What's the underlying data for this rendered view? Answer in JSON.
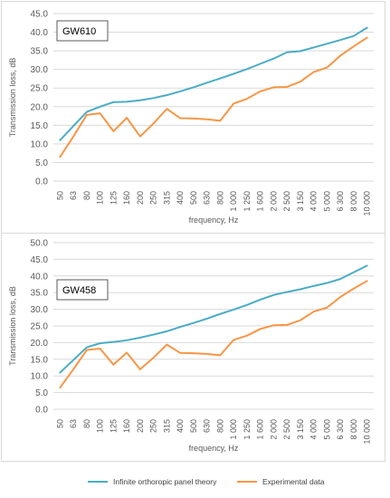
{
  "colors": {
    "theory": "#4bacc6",
    "experimental": "#f79646",
    "grid": "#d9d9d9",
    "axis_text": "#595959",
    "label_box_border": "#595959"
  },
  "legend": {
    "theory": "Infinite orthoropic panel theory",
    "experimental": "Experimental data"
  },
  "chart_data": [
    {
      "type": "line",
      "title": "",
      "panel_label": "GW610",
      "xlabel": "frequency, Hz",
      "ylabel": "Transmission loss, dB",
      "ylim": [
        0,
        45
      ],
      "ystep": 5,
      "ytick_format": "0.0",
      "grid": "horizontal",
      "legend_placement": "bottom",
      "categories": [
        "50",
        "63",
        "80",
        "100",
        "125",
        "160",
        "200",
        "250",
        "315",
        "400",
        "500",
        "630",
        "800",
        "1 000",
        "1 250",
        "1 600",
        "2 000",
        "2 500",
        "3 150",
        "4 000",
        "5 000",
        "6 300",
        "8 000",
        "10 000"
      ],
      "series": [
        {
          "name": "Infinite orthoropic panel theory",
          "color_key": "theory",
          "values": [
            11.0,
            14.8,
            18.6,
            20.0,
            21.2,
            21.3,
            21.7,
            22.3,
            23.1,
            24.1,
            25.2,
            26.4,
            27.6,
            28.8,
            30.1,
            31.5,
            32.9,
            34.6,
            34.9,
            35.9,
            36.9,
            37.9,
            39.0,
            41.2
          ]
        },
        {
          "name": "Experimental data",
          "color_key": "experimental",
          "values": [
            6.5,
            12.0,
            17.8,
            18.2,
            13.4,
            17.0,
            12.0,
            15.5,
            19.4,
            16.9,
            16.8,
            16.6,
            16.2,
            20.8,
            22.1,
            24.1,
            25.2,
            25.3,
            26.7,
            29.3,
            30.5,
            33.7,
            36.2,
            38.5
          ]
        }
      ]
    },
    {
      "type": "line",
      "title": "",
      "panel_label": "GW458",
      "xlabel": "frequency, Hz",
      "ylabel": "Transmission loss, dB",
      "ylim": [
        0,
        50
      ],
      "ystep": 5,
      "ytick_format": "0.0",
      "grid": "horizontal",
      "legend_placement": "bottom",
      "categories": [
        "50",
        "63",
        "80",
        "100",
        "125",
        "160",
        "200",
        "250",
        "315",
        "400",
        "500",
        "630",
        "800",
        "1 000",
        "1 250",
        "1 600",
        "2 000",
        "2 500",
        "3 150",
        "4 000",
        "5 000",
        "6 300",
        "8 000",
        "10 000"
      ],
      "series": [
        {
          "name": "Infinite orthoropic panel theory",
          "color_key": "theory",
          "values": [
            11.0,
            14.8,
            18.6,
            19.8,
            20.2,
            20.7,
            21.5,
            22.4,
            23.4,
            24.7,
            25.9,
            27.2,
            28.6,
            29.9,
            31.3,
            32.9,
            34.3,
            35.2,
            36.0,
            37.0,
            37.9,
            39.1,
            41.1,
            43.1
          ]
        },
        {
          "name": "Experimental data",
          "color_key": "experimental",
          "values": [
            6.5,
            12.0,
            17.8,
            18.2,
            13.4,
            17.0,
            12.0,
            15.5,
            19.4,
            16.9,
            16.8,
            16.6,
            16.2,
            20.8,
            22.1,
            24.1,
            25.2,
            25.3,
            26.7,
            29.3,
            30.5,
            33.7,
            36.2,
            38.5
          ]
        }
      ]
    }
  ]
}
